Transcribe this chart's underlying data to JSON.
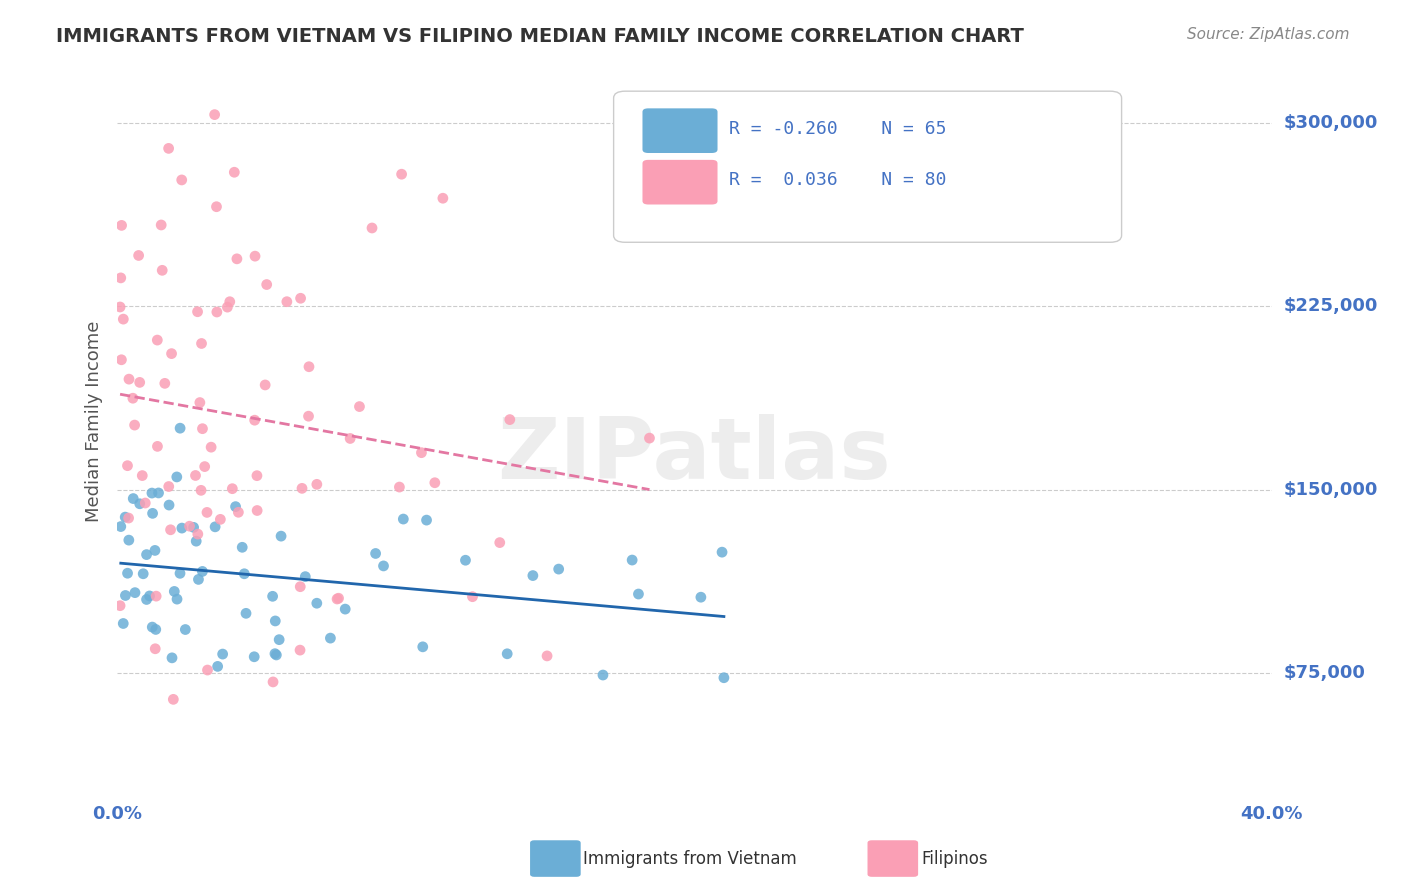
{
  "title": "IMMIGRANTS FROM VIETNAM VS FILIPINO MEDIAN FAMILY INCOME CORRELATION CHART",
  "source": "Source: ZipAtlas.com",
  "xlabel": "",
  "ylabel": "Median Family Income",
  "xlim": [
    0.0,
    0.4
  ],
  "ylim": [
    37500,
    318750
  ],
  "yticks": [
    75000,
    150000,
    225000,
    300000
  ],
  "xticks": [
    0.0,
    0.1,
    0.2,
    0.3,
    0.4
  ],
  "xtick_labels": [
    "0.0%",
    "",
    "",
    "",
    "40.0%"
  ],
  "ytick_labels": [
    "$75,000",
    "$150,000",
    "$225,000",
    "$300,000"
  ],
  "blue_R": -0.26,
  "blue_N": 65,
  "pink_R": 0.036,
  "pink_N": 80,
  "blue_color": "#6baed6",
  "pink_color": "#fa9fb5",
  "blue_line_color": "#2166ac",
  "pink_line_color": "#e377a2",
  "grid_color": "#cccccc",
  "title_color": "#333333",
  "axis_label_color": "#4472c4",
  "tick_label_color": "#4472c4",
  "legend_text_color": "#333333",
  "watermark": "ZIPatlas",
  "background_color": "#ffffff",
  "seed": 42
}
